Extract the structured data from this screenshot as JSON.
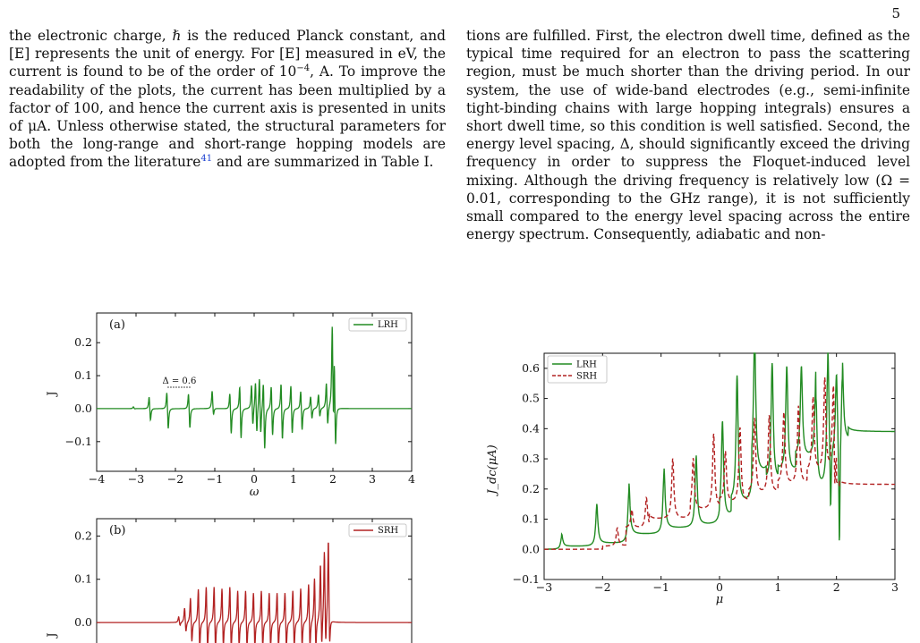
{
  "page_number": "5",
  "left_column": {
    "parts": [
      "the electronic charge, ℏ is the reduced Planck constant, and [E] represents the unit of energy. For [E] measured in eV, the current is found to be of the order of 10",
      "−4",
      ", A. To improve the readability of the plots, the current has been multiplied by a factor of 100, and hence the current axis is presented in units of μA. Unless otherwise stated, the structural parameters for both the long-range and short-range hopping models are adopted from the literature",
      "41",
      " and are summarized in Table I."
    ]
  },
  "right_column": {
    "text": "tions are fulfilled. First, the electron dwell time, defined as the typical time required for an electron to pass the scattering region, must be much shorter than the driving period. In our system, the use of wide-band electrodes (e.g., semi-infinite tight-binding chains with large hopping integrals) ensures a short dwell time, so this condition is well satisfied. Second, the energy level spacing, Δ, should significantly exceed the driving frequency in order to suppress the Floquet-induced level mixing. Although the driving frequency is relatively low (Ω = 0.01, corresponding to the GHz range), it is not sufficiently small compared to the energy level spacing across the entire energy spectrum. Consequently, adiabatic and non-"
  },
  "chart_data": [
    {
      "type": "line",
      "panel_label": "(a)",
      "xlabel": "ω",
      "ylabel": "J",
      "xlim": [
        -4,
        4
      ],
      "ylim": [
        -0.19,
        0.29
      ],
      "xticks": [
        "−4",
        "−3",
        "−2",
        "−1",
        "0",
        "1",
        "2",
        "3",
        "4"
      ],
      "yticks": [
        "0.2",
        "0.1",
        "0.0",
        "−0.1"
      ],
      "annotation": "Δ = 0.6",
      "legend": "top-right",
      "series": [
        {
          "name": "LRH",
          "color": "#228b22",
          "style": "solid",
          "baseline": 0,
          "peaks": [
            [
              -3.05,
              0.006,
              -0.002
            ],
            [
              -2.65,
              0.045,
              -0.045
            ],
            [
              -2.2,
              0.065,
              -0.075
            ],
            [
              -1.65,
              0.06,
              -0.072
            ],
            [
              -1.05,
              0.06,
              -0.03
            ],
            [
              -0.6,
              0.065,
              -0.09
            ],
            [
              -0.35,
              0.09,
              -0.11
            ],
            [
              -0.05,
              0.085,
              -0.07
            ],
            [
              0.05,
              0.1,
              -0.095
            ],
            [
              0.15,
              0.115,
              -0.1
            ],
            [
              0.25,
              0.11,
              -0.145
            ],
            [
              0.45,
              0.09,
              -0.1
            ],
            [
              0.7,
              0.1,
              -0.115
            ],
            [
              0.95,
              0.09,
              -0.095
            ],
            [
              1.2,
              0.07,
              -0.08
            ],
            [
              1.45,
              0.045,
              -0.04
            ],
            [
              1.65,
              0.05,
              -0.035
            ],
            [
              1.85,
              0.09,
              -0.07
            ],
            [
              2.0,
              0.27,
              -0.17
            ],
            [
              2.05,
              0.22,
              -0.15
            ]
          ]
        }
      ]
    },
    {
      "type": "line",
      "panel_label": "(b)",
      "xlabel": "",
      "ylabel": "J",
      "xlim": [
        -4,
        4
      ],
      "ylim": [
        -0.07,
        0.24
      ],
      "yticks": [
        "0.2",
        "0.1",
        "0.0"
      ],
      "legend": "top-right",
      "series": [
        {
          "name": "SRH",
          "color": "#b22222",
          "style": "solid",
          "baseline": 0,
          "peaks": [
            [
              -1.9,
              0.015,
              -0.01
            ],
            [
              -1.75,
              0.04,
              -0.03
            ],
            [
              -1.6,
              0.07,
              -0.06
            ],
            [
              -1.4,
              0.095,
              -0.08
            ],
            [
              -1.2,
              0.1,
              -0.08
            ],
            [
              -1.0,
              0.1,
              -0.08
            ],
            [
              -0.8,
              0.095,
              -0.075
            ],
            [
              -0.6,
              0.1,
              -0.08
            ],
            [
              -0.4,
              0.09,
              -0.075
            ],
            [
              -0.2,
              0.09,
              -0.075
            ],
            [
              0.0,
              0.085,
              -0.075
            ],
            [
              0.2,
              0.09,
              -0.075
            ],
            [
              0.4,
              0.085,
              -0.075
            ],
            [
              0.6,
              0.085,
              -0.075
            ],
            [
              0.8,
              0.085,
              -0.075
            ],
            [
              1.0,
              0.09,
              -0.075
            ],
            [
              1.2,
              0.095,
              -0.075
            ],
            [
              1.4,
              0.105,
              -0.08
            ],
            [
              1.55,
              0.12,
              -0.085
            ],
            [
              1.7,
              0.15,
              -0.09
            ],
            [
              1.8,
              0.18,
              -0.09
            ],
            [
              1.9,
              0.21,
              -0.09
            ]
          ]
        }
      ]
    },
    {
      "type": "line",
      "xlabel": "μ",
      "ylabel": "J_dc(μA)",
      "xlim": [
        -3,
        3
      ],
      "ylim": [
        -0.1,
        0.65
      ],
      "xticks": [
        "−3",
        "−2",
        "−1",
        "0",
        "1",
        "2",
        "3"
      ],
      "yticks": [
        "0.6",
        "0.5",
        "0.4",
        "0.3",
        "0.2",
        "0.1",
        "0.0",
        "−0.1"
      ],
      "legend": "top-left",
      "series": [
        {
          "name": "LRH",
          "color": "#228b22",
          "style": "solid",
          "steps": [
            [
              -3.0,
              0.0
            ],
            [
              -2.7,
              0.01
            ],
            [
              -2.1,
              0.02
            ],
            [
              -1.55,
              0.05
            ],
            [
              -0.95,
              0.07
            ],
            [
              -0.4,
              0.08
            ],
            [
              0.0,
              0.1
            ],
            [
              0.2,
              0.15
            ],
            [
              0.55,
              0.25
            ],
            [
              0.8,
              0.22
            ],
            [
              1.0,
              0.25
            ],
            [
              1.3,
              0.3
            ],
            [
              1.65,
              0.2
            ],
            [
              1.85,
              0.3
            ],
            [
              2.1,
              0.36
            ],
            [
              2.2,
              0.39
            ],
            [
              3.0,
              0.39
            ]
          ],
          "peaks": [
            [
              -2.7,
              0.04
            ],
            [
              -2.1,
              0.14
            ],
            [
              -1.55,
              0.19
            ],
            [
              -0.95,
              0.25
            ],
            [
              -0.4,
              0.3
            ],
            [
              0.05,
              0.42
            ],
            [
              0.3,
              0.57
            ],
            [
              0.6,
              0.62
            ],
            [
              0.9,
              0.61
            ],
            [
              1.15,
              0.6
            ],
            [
              1.4,
              0.6
            ],
            [
              1.65,
              0.59
            ],
            [
              1.85,
              0.6
            ],
            [
              2.0,
              0.58
            ],
            [
              2.1,
              0.57
            ]
          ],
          "dips": [
            [
              2.05,
              -0.07
            ],
            [
              1.9,
              0.06
            ]
          ]
        },
        {
          "name": "SRH",
          "color": "#b22222",
          "style": "dashed",
          "steps": [
            [
              -3.0,
              0.0
            ],
            [
              -2.0,
              0.01
            ],
            [
              -1.6,
              0.07
            ],
            [
              -1.2,
              0.1
            ],
            [
              -0.5,
              0.13
            ],
            [
              0.0,
              0.15
            ],
            [
              0.5,
              0.18
            ],
            [
              1.0,
              0.21
            ],
            [
              1.5,
              0.25
            ],
            [
              1.9,
              0.28
            ],
            [
              2.0,
              0.2
            ],
            [
              2.05,
              0.215
            ],
            [
              3.0,
              0.215
            ]
          ],
          "peaks": [
            [
              -1.75,
              0.07
            ],
            [
              -1.5,
              0.13
            ],
            [
              -1.25,
              0.17
            ],
            [
              -0.8,
              0.3
            ],
            [
              -0.45,
              0.3
            ],
            [
              -0.1,
              0.38
            ],
            [
              0.1,
              0.32
            ],
            [
              0.35,
              0.4
            ],
            [
              0.6,
              0.43
            ],
            [
              0.85,
              0.44
            ],
            [
              1.1,
              0.45
            ],
            [
              1.35,
              0.47
            ],
            [
              1.6,
              0.5
            ],
            [
              1.8,
              0.56
            ],
            [
              1.95,
              0.59
            ]
          ],
          "dips": [
            [
              1.97,
              0.05
            ]
          ]
        }
      ]
    }
  ]
}
